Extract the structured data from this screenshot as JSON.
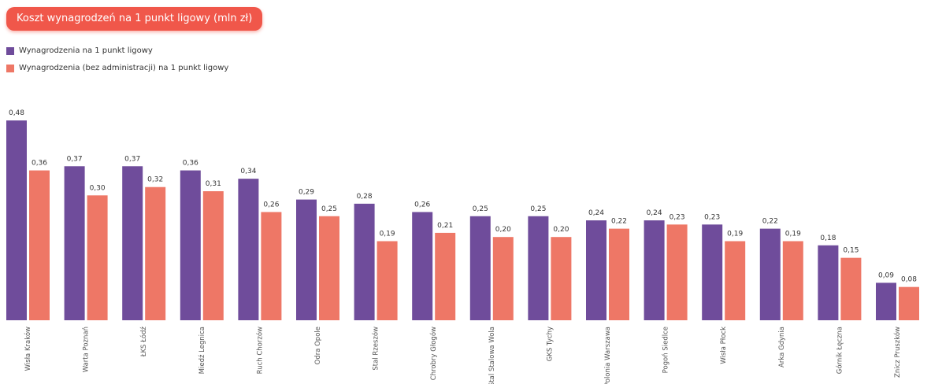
{
  "title": "Koszt wynagrodzeń na 1 punkt ligowy (mln zł)",
  "colors": {
    "series1": "#6f4c9b",
    "series2": "#ee7766"
  },
  "chart_data": {
    "type": "bar",
    "title": "Koszt wynagrodzeń na 1 punkt ligowy (mln zł)",
    "xlabel": "",
    "ylabel": "",
    "ylim": [
      0,
      0.5
    ],
    "grid": false,
    "legend": "top-left",
    "categories": [
      "Wisła Kraków",
      "Warta Poznań",
      "ŁKS Łódź",
      "Miedź Legnica",
      "Ruch Chorzów",
      "Odra Opole",
      "Stal Rzeszów",
      "Chrobry Głogów",
      "Stal Stalowa Wola",
      "GKS Tychy",
      "Polonia Warszawa",
      "Pogoń Siedlce",
      "Wisła Płock",
      "Arka Gdynia",
      "Górnik Łęczna",
      "Znicz Pruszków"
    ],
    "series": [
      {
        "name": "Wynagrodzenia na 1 punkt ligowy",
        "values": [
          0.48,
          0.37,
          0.37,
          0.36,
          0.34,
          0.29,
          0.28,
          0.26,
          0.25,
          0.25,
          0.24,
          0.24,
          0.23,
          0.22,
          0.18,
          0.09
        ]
      },
      {
        "name": "Wynagrodzenia (bez administracji) na 1 punkt ligowy",
        "values": [
          0.36,
          0.3,
          0.32,
          0.31,
          0.26,
          0.25,
          0.19,
          0.21,
          0.2,
          0.2,
          0.22,
          0.23,
          0.19,
          0.19,
          0.15,
          0.08
        ]
      }
    ]
  }
}
